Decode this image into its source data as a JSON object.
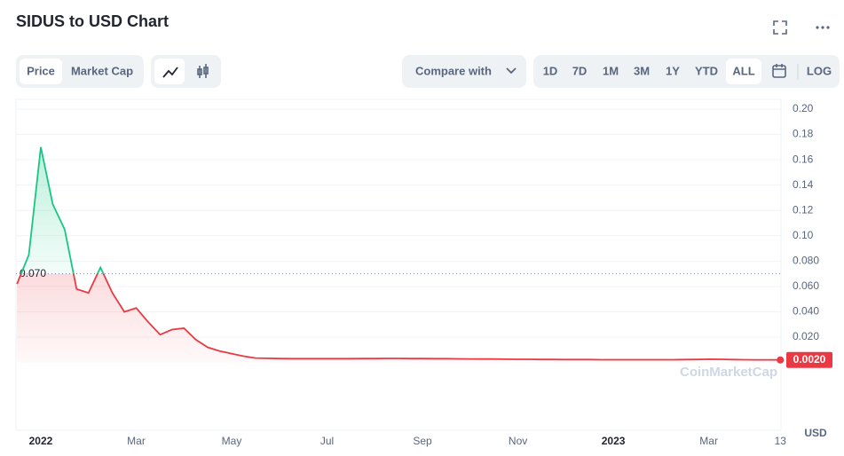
{
  "chart_data": {
    "type": "line",
    "title": "SIDUS to USD Chart",
    "controls": {
      "tabs": [
        "Price",
        "Market Cap"
      ],
      "compare": "Compare with",
      "ranges": [
        "1D",
        "7D",
        "1M",
        "3M",
        "1Y",
        "YTD",
        "ALL"
      ],
      "active_range": "ALL",
      "log": "LOG"
    },
    "currency": "USD",
    "watermark": "CoinMarketCap",
    "categories": [
      null,
      null,
      "2022",
      null,
      null,
      null,
      null,
      null,
      null,
      null,
      "Mar",
      null,
      null,
      null,
      null,
      null,
      null,
      null,
      "May",
      null,
      null,
      null,
      null,
      null,
      null,
      null,
      "Jul",
      null,
      null,
      null,
      null,
      null,
      null,
      null,
      "Sep",
      null,
      null,
      null,
      null,
      null,
      null,
      null,
      "Nov",
      null,
      null,
      null,
      null,
      null,
      null,
      null,
      "2023",
      null,
      null,
      null,
      null,
      null,
      null,
      null,
      "Mar",
      null,
      null,
      null,
      null,
      null,
      "13"
    ],
    "series": [
      {
        "name": "Price",
        "color": "#ea3943",
        "color_above": "#16c784",
        "values": [
          0.062,
          0.085,
          0.17,
          0.125,
          0.105,
          0.058,
          0.055,
          0.075,
          0.055,
          0.04,
          0.043,
          0.032,
          0.022,
          0.026,
          0.027,
          0.018,
          0.012,
          0.009,
          0.007,
          0.005,
          0.0035,
          0.0033,
          0.0031,
          0.003,
          0.003,
          0.003,
          0.003,
          0.003,
          0.003,
          0.0031,
          0.0031,
          0.0032,
          0.0032,
          0.0031,
          0.0031,
          0.003,
          0.003,
          0.0029,
          0.0028,
          0.0027,
          0.0027,
          0.0026,
          0.0025,
          0.0025,
          0.0024,
          0.0024,
          0.0023,
          0.0023,
          0.0023,
          0.0022,
          0.0022,
          0.0022,
          0.0022,
          0.0022,
          0.0022,
          0.0022,
          0.0023,
          0.0024,
          0.0026,
          0.0025,
          0.0023,
          0.0022,
          0.0021,
          0.0021,
          0.002
        ]
      }
    ],
    "reference": {
      "value": 0.07,
      "label": "0.070"
    },
    "last_price": {
      "value": 0.002,
      "label": "0.0020"
    },
    "ylim": [
      0,
      0.2
    ],
    "yticks": [
      {
        "value": 0.02,
        "label": "0.020"
      },
      {
        "value": 0.04,
        "label": "0.040"
      },
      {
        "value": 0.06,
        "label": "0.060"
      },
      {
        "value": 0.08,
        "label": "0.080"
      },
      {
        "value": 0.1,
        "label": "0.10"
      },
      {
        "value": 0.12,
        "label": "0.12"
      },
      {
        "value": 0.14,
        "label": "0.14"
      },
      {
        "value": 0.16,
        "label": "0.16"
      },
      {
        "value": 0.18,
        "label": "0.18"
      },
      {
        "value": 0.2,
        "label": "0.20"
      }
    ],
    "grid": true
  }
}
